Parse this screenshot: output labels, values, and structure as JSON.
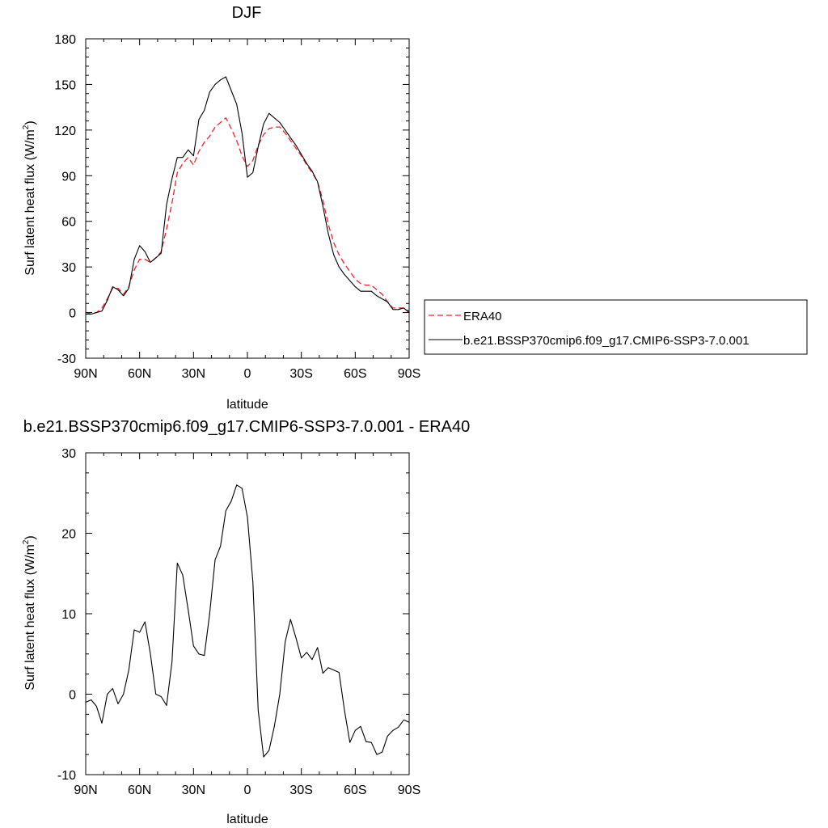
{
  "chart_data": [
    {
      "type": "line",
      "title": "DJF",
      "xlabel": "latitude",
      "ylabel_main": "Surf latent heat flux (W/m",
      "ylabel_sup": "2",
      "ylabel_close": ")",
      "xlim": [
        90,
        -90
      ],
      "ylim": [
        -30,
        180
      ],
      "xticks": [
        90,
        60,
        30,
        0,
        -30,
        -60,
        -90
      ],
      "xtick_labels": [
        "90N",
        "60N",
        "30N",
        "0",
        "30S",
        "60S",
        "90S"
      ],
      "yticks": [
        -30,
        0,
        30,
        60,
        90,
        120,
        150,
        180
      ],
      "ytick_labels": [
        "-30",
        "0",
        "30",
        "60",
        "90",
        "120",
        "150",
        "180"
      ],
      "grid": false,
      "legend_placement": "right",
      "series": [
        {
          "name": "ERA40",
          "color": "#e8262d",
          "dash": true,
          "x": [
            90,
            87,
            84,
            81,
            78,
            75,
            72,
            69,
            66,
            63,
            60,
            57,
            54,
            51,
            48,
            45,
            42,
            39,
            36,
            33,
            30,
            27,
            24,
            21,
            18,
            15,
            12,
            9,
            6,
            3,
            0,
            -3,
            -6,
            -9,
            -12,
            -15,
            -18,
            -21,
            -24,
            -27,
            -30,
            -33,
            -36,
            -39,
            -42,
            -45,
            -48,
            -51,
            -54,
            -57,
            -60,
            -63,
            -66,
            -69,
            -72,
            -75,
            -78,
            -81,
            -84,
            -87,
            -90
          ],
          "y": [
            -1,
            0,
            0,
            3,
            9,
            16,
            16,
            12,
            17,
            28,
            35,
            35,
            33,
            36,
            40,
            55,
            72,
            92,
            98,
            102,
            97,
            106,
            112,
            116,
            122,
            125,
            128,
            121,
            113,
            103,
            96,
            100,
            110,
            117,
            121,
            122,
            122,
            118,
            113,
            108,
            103,
            97,
            92,
            86,
            74,
            58,
            46,
            38,
            32,
            27,
            22,
            19,
            18,
            18,
            15,
            12,
            7,
            3,
            3,
            3,
            1
          ]
        },
        {
          "name": "b.e21.BSSP370cmip6.f09_g17.CMIP6-SSP3-7.0.001",
          "color": "#000000",
          "dash": false,
          "x": [
            90,
            87,
            84,
            81,
            78,
            75,
            72,
            69,
            66,
            63,
            60,
            57,
            54,
            51,
            48,
            45,
            42,
            39,
            36,
            33,
            30,
            27,
            24,
            21,
            18,
            15,
            12,
            9,
            6,
            3,
            0,
            -3,
            -6,
            -9,
            -12,
            -15,
            -18,
            -21,
            -24,
            -27,
            -30,
            -33,
            -36,
            -39,
            -42,
            -45,
            -48,
            -51,
            -54,
            -57,
            -60,
            -63,
            -66,
            -69,
            -72,
            -75,
            -78,
            -81,
            -84,
            -87,
            -90
          ],
          "y": [
            -1,
            -1,
            0,
            1,
            8,
            17,
            15,
            11,
            16,
            35,
            44,
            40,
            33,
            36,
            39,
            71,
            88,
            102,
            102,
            107,
            103,
            127,
            133,
            145,
            150,
            153,
            155,
            146,
            137,
            118,
            89,
            92,
            109,
            124,
            131,
            128,
            125,
            120,
            115,
            110,
            104,
            98,
            93,
            86,
            70,
            52,
            38,
            30,
            25,
            21,
            17,
            14,
            14,
            14,
            11,
            9,
            7,
            2,
            2,
            3,
            0
          ]
        }
      ]
    },
    {
      "type": "line",
      "title": "b.e21.BSSP370cmip6.f09_g17.CMIP6-SSP3-7.0.001 - ERA40",
      "xlabel": "latitude",
      "ylabel_main": "Surf latent heat flux (W/m",
      "ylabel_sup": "2",
      "ylabel_close": ")",
      "xlim": [
        90,
        -90
      ],
      "ylim": [
        -10,
        30
      ],
      "xticks": [
        90,
        60,
        30,
        0,
        -30,
        -60,
        -90
      ],
      "xtick_labels": [
        "90N",
        "60N",
        "30N",
        "0",
        "30S",
        "60S",
        "90S"
      ],
      "yticks": [
        -10,
        0,
        10,
        20,
        30
      ],
      "ytick_labels": [
        "-10",
        "0",
        "10",
        "20",
        "30"
      ],
      "grid": false,
      "series": [
        {
          "color": "#000000",
          "dash": false,
          "x": [
            90,
            87,
            84,
            81,
            78,
            75,
            72,
            69,
            66,
            63,
            60,
            57,
            54,
            51,
            48,
            45,
            42,
            39,
            36,
            33,
            30,
            27,
            24,
            21,
            18,
            15,
            12,
            9,
            6,
            3,
            0,
            -3,
            -6,
            -9,
            -12,
            -15,
            -18,
            -21,
            -24,
            -27,
            -30,
            -33,
            -36,
            -39,
            -42,
            -45,
            -48,
            -51,
            -54,
            -57,
            -60,
            -63,
            -66,
            -69,
            -72,
            -75,
            -78,
            -81,
            -84,
            -87,
            -90
          ],
          "y": [
            -1,
            -0.7,
            -1.5,
            -3.6,
            0,
            0.7,
            -1.2,
            0,
            3,
            8,
            7.7,
            9,
            5,
            0,
            -0.3,
            -1.4,
            4,
            16.3,
            14.8,
            10.5,
            6,
            5,
            4.8,
            10,
            16.7,
            18.4,
            22.8,
            24,
            26,
            25.6,
            22,
            14,
            -2,
            -7.8,
            -7,
            -4,
            0,
            6.5,
            9.3,
            7,
            4.5,
            5.2,
            4.3,
            5.8,
            2.6,
            3.3,
            3,
            2.7,
            -2,
            -6,
            -4.5,
            -4,
            -5.9,
            -6,
            -7.5,
            -7.2,
            -5.2,
            -4.5,
            -4.1,
            -3.2,
            -3.5
          ]
        }
      ]
    }
  ]
}
